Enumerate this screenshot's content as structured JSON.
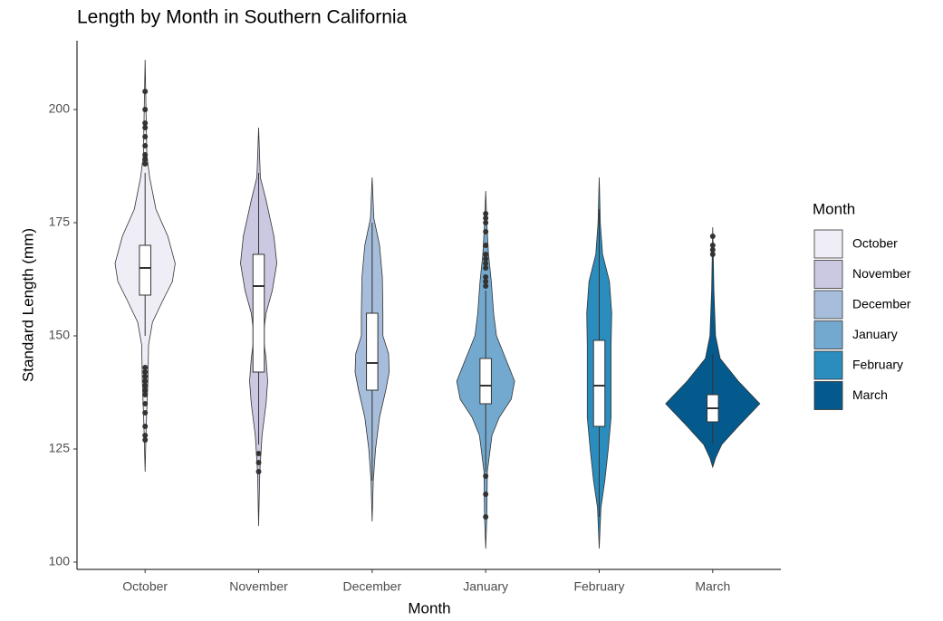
{
  "chart_data": {
    "type": "violin",
    "title": "Length by Month in Southern California",
    "x_label": "Month",
    "y_label": "Standard Length (mm)",
    "legend_title": "Month",
    "categories": [
      "October",
      "November",
      "December",
      "January",
      "February",
      "March"
    ],
    "colors": [
      "#efedf5",
      "#cbc9e2",
      "#a6bddb",
      "#74a9cf",
      "#2b8cbe",
      "#045a8d"
    ],
    "ylim": [
      98.4,
      215.2
    ],
    "yticks": [
      100,
      125,
      150,
      175,
      200
    ],
    "violins": [
      {
        "y": [
          211,
          190,
          185,
          178,
          172,
          166,
          162,
          158,
          153,
          148,
          140,
          130,
          120
        ],
        "widths": [
          0,
          0.03,
          0.08,
          0.19,
          0.4,
          0.53,
          0.48,
          0.32,
          0.13,
          0.06,
          0.05,
          0.02,
          0
        ]
      },
      {
        "y": [
          196,
          185,
          180,
          172,
          166,
          160,
          155,
          150,
          145,
          140,
          135,
          128,
          120,
          108
        ],
        "widths": [
          0,
          0.03,
          0.13,
          0.27,
          0.32,
          0.24,
          0.13,
          0.08,
          0.13,
          0.16,
          0.13,
          0.06,
          0.02,
          0
        ]
      },
      {
        "y": [
          185,
          176,
          170,
          163,
          155,
          150,
          146,
          142,
          138,
          132,
          125,
          118,
          109
        ],
        "widths": [
          0,
          0.03,
          0.13,
          0.18,
          0.19,
          0.19,
          0.29,
          0.3,
          0.24,
          0.13,
          0.06,
          0.02,
          0
        ]
      },
      {
        "y": [
          182,
          175,
          168,
          162,
          155,
          150,
          145,
          140,
          136,
          132,
          128,
          120,
          110,
          103
        ],
        "widths": [
          0,
          0.02,
          0.05,
          0.1,
          0.14,
          0.19,
          0.35,
          0.51,
          0.45,
          0.24,
          0.11,
          0.03,
          0.02,
          0
        ]
      },
      {
        "y": [
          185,
          175,
          168,
          162,
          155,
          148,
          140,
          132,
          125,
          118,
          112,
          103
        ],
        "widths": [
          0,
          0.02,
          0.06,
          0.18,
          0.22,
          0.21,
          0.21,
          0.21,
          0.16,
          0.1,
          0.03,
          0
        ]
      },
      {
        "y": [
          174,
          160,
          150,
          145,
          140,
          135,
          130,
          126,
          123,
          121
        ],
        "widths": [
          0,
          0.02,
          0.05,
          0.13,
          0.45,
          0.83,
          0.45,
          0.16,
          0.05,
          0
        ]
      }
    ],
    "boxes": [
      {
        "min": 150,
        "q1": 159,
        "median": 165,
        "q3": 170,
        "max": 186,
        "outliers": [
          127,
          128,
          130,
          133,
          135,
          137,
          138,
          139,
          140,
          141,
          142,
          143,
          188,
          189,
          190,
          192,
          194,
          196,
          197,
          200,
          204
        ]
      },
      {
        "min": 126,
        "q1": 142,
        "median": 161,
        "q3": 168,
        "max": 186,
        "outliers": [
          120,
          122,
          124
        ]
      },
      {
        "min": 118,
        "q1": 138,
        "median": 144,
        "q3": 155,
        "max": 175,
        "outliers": []
      },
      {
        "min": 120,
        "q1": 135,
        "median": 139,
        "q3": 145,
        "max": 160,
        "outliers": [
          110,
          115,
          119,
          161,
          162,
          163,
          165,
          166,
          167,
          168,
          170,
          173,
          175,
          176,
          177
        ]
      },
      {
        "min": 110,
        "q1": 130,
        "median": 139,
        "q3": 149,
        "max": 178,
        "outliers": []
      },
      {
        "min": 126,
        "q1": 131,
        "median": 134,
        "q3": 137,
        "max": 146,
        "outliers": [
          168,
          169,
          170,
          172
        ]
      }
    ]
  }
}
